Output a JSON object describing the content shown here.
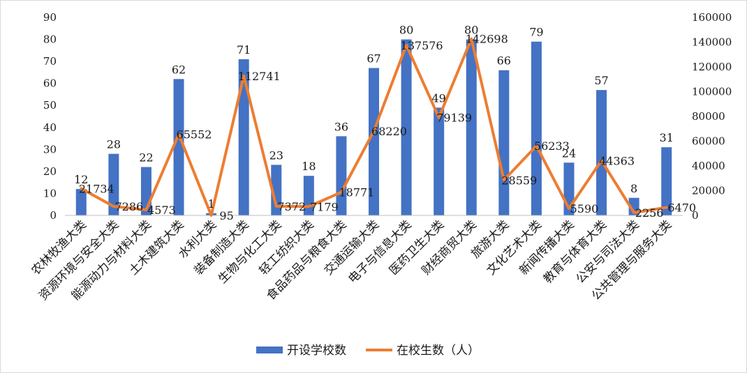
{
  "chart_data": {
    "type": "bar",
    "categories": [
      "农林牧渔大类",
      "资源环境与安全大类",
      "能源动力与材料大类",
      "土木建筑大类",
      "水利大类",
      "装备制造大类",
      "生物与化工大类",
      "轻工纺织大类",
      "食品药品与粮食大类",
      "交通运输大类",
      "电子与信息大类",
      "医药卫生大类",
      "财经商贸大类",
      "旅游大类",
      "文化艺术大类",
      "新闻传播大类",
      "教育与体育大类",
      "公安与司法大类",
      "公共管理与服务大类"
    ],
    "series": [
      {
        "name": "开设学校数",
        "type": "bar",
        "axis": "left",
        "color": "#4472c4",
        "values": [
          12,
          28,
          22,
          62,
          1,
          71,
          23,
          18,
          36,
          67,
          80,
          49,
          80,
          66,
          79,
          24,
          57,
          8,
          31
        ],
        "labels": [
          "12",
          "28",
          "22",
          "62",
          "1",
          "71",
          "23",
          "18",
          "36",
          "67",
          "80",
          "49",
          "80",
          "66",
          "79",
          "24",
          "57",
          "8",
          "31"
        ]
      },
      {
        "name": "在校生数（人）",
        "type": "line",
        "axis": "right",
        "color": "#ed7d31",
        "values": [
          21734,
          7286,
          4573,
          65552,
          95,
          112741,
          7372,
          7179,
          18771,
          68220,
          137576,
          79139,
          142698,
          28559,
          56233,
          5590,
          44363,
          2256,
          6470
        ],
        "labels": [
          "21734",
          "7286",
          "4573",
          "65552",
          "95",
          "112741",
          "7372",
          "7179",
          "18771",
          "68220",
          "137576",
          "79139",
          "142698",
          "28559",
          "56233",
          "5590",
          "44363",
          "2256",
          "6470"
        ]
      }
    ],
    "y_left": {
      "ylim": [
        0,
        90
      ],
      "ticks": [
        "0",
        "10",
        "20",
        "30",
        "40",
        "50",
        "60",
        "70",
        "80",
        "90"
      ]
    },
    "y_right": {
      "ylim": [
        0,
        160000
      ],
      "ticks": [
        "0",
        "20000",
        "40000",
        "60000",
        "80000",
        "100000",
        "120000",
        "140000",
        "160000"
      ]
    },
    "grid": false,
    "legend": "bottom"
  },
  "legend": {
    "bar_label": "开设学校数",
    "line_label": "在校生数（人）"
  }
}
